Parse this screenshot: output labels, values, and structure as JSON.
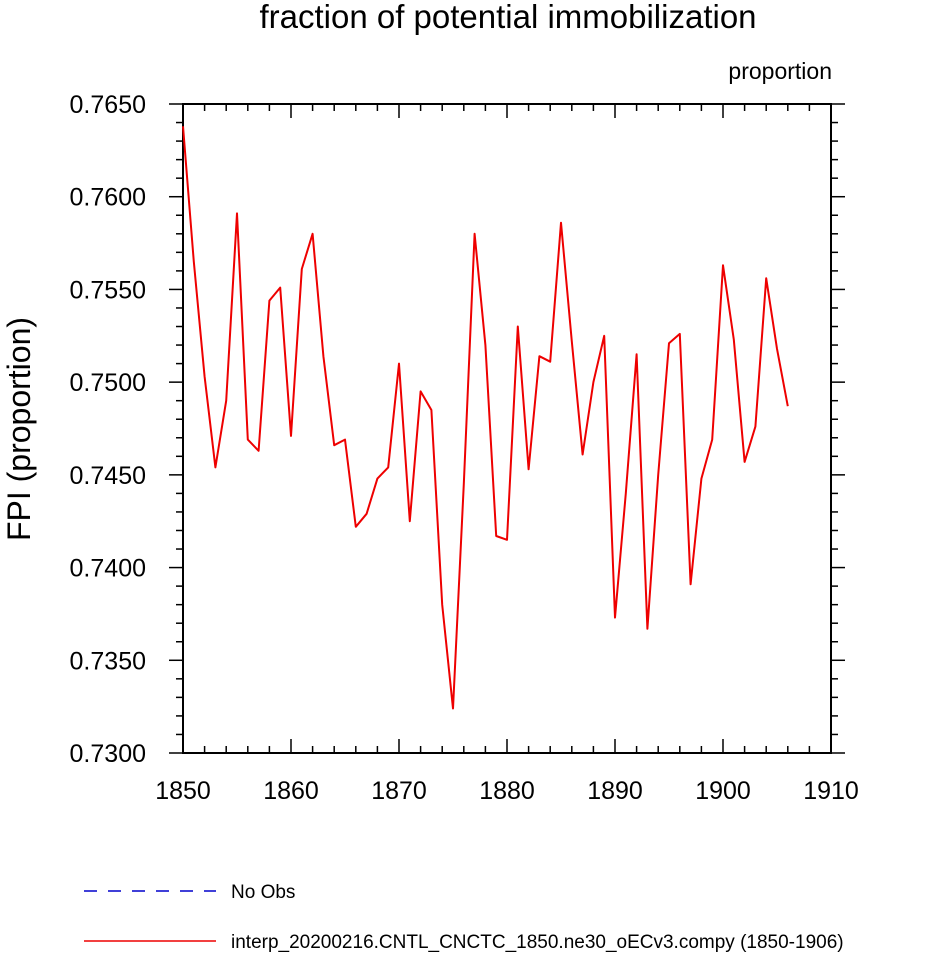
{
  "chart_data": {
    "type": "line",
    "title": "fraction of potential immobilization",
    "units_label": "proportion",
    "ylabel": "FPI  (proportion)",
    "xlabel": "",
    "xlim": [
      1850,
      1910
    ],
    "ylim": [
      0.73,
      0.765
    ],
    "x_ticks": [
      1850,
      1860,
      1870,
      1880,
      1890,
      1900,
      1910
    ],
    "y_ticks": [
      "0.7300",
      "0.7350",
      "0.7400",
      "0.7450",
      "0.7500",
      "0.7550",
      "0.7600",
      "0.7650"
    ],
    "grid": false,
    "legend_position": "bottom",
    "series": [
      {
        "name": "No Obs",
        "color": "#0000cc",
        "style": "dashed",
        "x": [],
        "values": []
      },
      {
        "name": "interp_20200216.CNTL_CNCTC_1850.ne30_oECv3.compy (1850-1906)",
        "color": "#ee0000",
        "style": "solid",
        "x": [
          1850,
          1851,
          1852,
          1853,
          1854,
          1855,
          1856,
          1857,
          1858,
          1859,
          1860,
          1861,
          1862,
          1863,
          1864,
          1865,
          1866,
          1867,
          1868,
          1869,
          1870,
          1871,
          1872,
          1873,
          1874,
          1875,
          1876,
          1877,
          1878,
          1879,
          1880,
          1881,
          1882,
          1883,
          1884,
          1885,
          1886,
          1887,
          1888,
          1889,
          1890,
          1891,
          1892,
          1893,
          1894,
          1895,
          1896,
          1897,
          1898,
          1899,
          1900,
          1901,
          1902,
          1903,
          1904,
          1905,
          1906
        ],
        "values": [
          0.7638,
          0.7565,
          0.7503,
          0.7454,
          0.749,
          0.7591,
          0.7469,
          0.7463,
          0.7544,
          0.7551,
          0.7471,
          0.7561,
          0.758,
          0.7514,
          0.7466,
          0.7469,
          0.7422,
          0.7429,
          0.7448,
          0.7454,
          0.751,
          0.7425,
          0.7495,
          0.7485,
          0.738,
          0.7324,
          0.7445,
          0.758,
          0.752,
          0.7417,
          0.7415,
          0.753,
          0.7453,
          0.7514,
          0.7511,
          0.7586,
          0.7522,
          0.7461,
          0.75,
          0.7525,
          0.7373,
          0.744,
          0.7515,
          0.7367,
          0.745,
          0.7521,
          0.7526,
          0.7391,
          0.7448,
          0.7469,
          0.7563,
          0.7523,
          0.7457,
          0.7476,
          0.7556,
          0.7518,
          0.7487
        ]
      }
    ]
  }
}
